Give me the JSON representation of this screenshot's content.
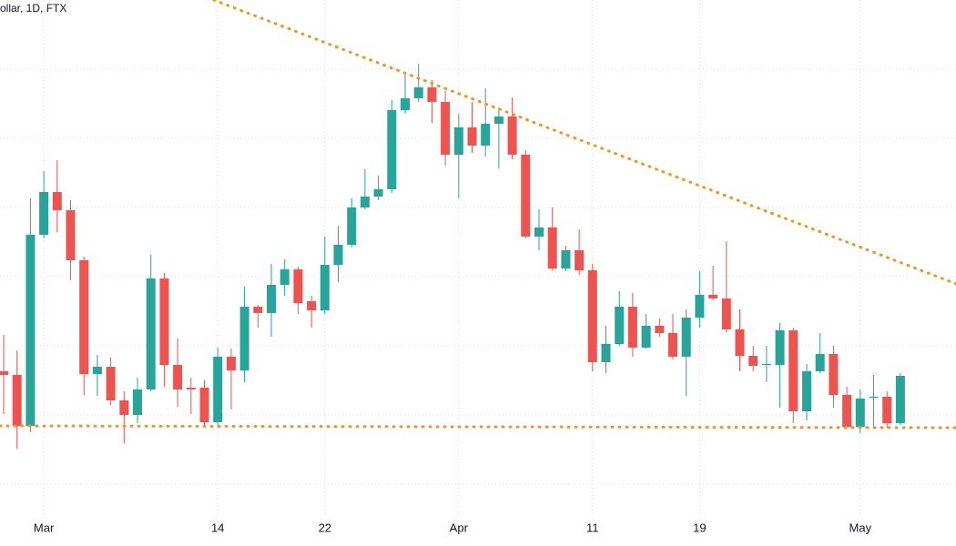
{
  "chart_data": {
    "type": "candlestick",
    "title": "ollar, 1D, FTX",
    "categories": [
      null,
      null,
      null,
      "Mar",
      null,
      null,
      null,
      null,
      null,
      null,
      null,
      null,
      null,
      null,
      null,
      null,
      "14",
      null,
      null,
      null,
      null,
      null,
      null,
      null,
      "22",
      null,
      null,
      null,
      null,
      null,
      null,
      null,
      null,
      null,
      "Apr",
      null,
      null,
      null,
      null,
      null,
      null,
      null,
      null,
      null,
      "11",
      null,
      null,
      null,
      null,
      null,
      null,
      null,
      "19",
      null,
      null,
      null,
      null,
      null,
      null,
      null,
      null,
      null,
      null,
      null,
      "May",
      null,
      null,
      null
    ],
    "open": [
      192,
      188,
      132,
      342,
      389,
      369,
      314,
      189,
      197,
      160,
      144,
      172,
      294,
      199,
      174,
      174,
      136,
      208,
      193,
      263,
      256,
      287,
      304,
      269,
      259,
      309,
      331,
      372,
      384,
      392,
      479,
      492,
      504,
      488,
      430,
      460,
      440,
      464,
      472,
      430,
      340,
      350,
      305,
      325,
      303,
      202,
      222,
      263,
      218,
      242,
      234,
      208,
      251,
      276,
      272,
      238,
      209,
      199,
      199,
      237,
      148,
      192,
      211,
      166,
      131,
      163,
      164,
      135
    ],
    "high": [
      232,
      215,
      382,
      412,
      424,
      380,
      318,
      210,
      207,
      170,
      185,
      320,
      300,
      228,
      185,
      182,
      218,
      217,
      285,
      265,
      310,
      315,
      307,
      275,
      340,
      352,
      382,
      414,
      407,
      490,
      520,
      530,
      512,
      500,
      475,
      488,
      503,
      482,
      493,
      435,
      370,
      372,
      330,
      348,
      310,
      242,
      280,
      278,
      255,
      250,
      255,
      260,
      302,
      308,
      335,
      260,
      220,
      220,
      245,
      240,
      200,
      234,
      220,
      175,
      172,
      188,
      170,
      190
    ],
    "low": [
      145,
      107,
      125,
      338,
      345,
      292,
      166,
      165,
      155,
      113,
      135,
      170,
      175,
      153,
      145,
      132,
      130,
      150,
      180,
      240,
      230,
      275,
      255,
      240,
      255,
      290,
      328,
      370,
      380,
      388,
      475,
      488,
      465,
      418,
      382,
      432,
      428,
      415,
      425,
      338,
      325,
      303,
      302,
      298,
      192,
      190,
      220,
      208,
      217,
      230,
      205,
      165,
      240,
      270,
      235,
      192,
      192,
      180,
      152,
      135,
      138,
      190,
      152,
      130,
      124,
      130,
      130,
      133
    ],
    "close": [
      188,
      132,
      342,
      389,
      369,
      314,
      189,
      197,
      160,
      144,
      172,
      294,
      199,
      172,
      172,
      136,
      208,
      193,
      263,
      256,
      287,
      304,
      267,
      259,
      309,
      331,
      372,
      384,
      392,
      479,
      492,
      504,
      488,
      430,
      460,
      440,
      464,
      472,
      430,
      340,
      350,
      305,
      325,
      303,
      202,
      222,
      263,
      218,
      242,
      234,
      208,
      251,
      276,
      272,
      238,
      209,
      198,
      200,
      237,
      148,
      192,
      211,
      166,
      131,
      162,
      164,
      135,
      187
    ],
    "up_color": "#26a69a",
    "down_color": "#ef5350",
    "ylim": [
      35,
      600
    ],
    "yticks": [
      68,
      144,
      220,
      296,
      372,
      448,
      524
    ],
    "grid": true,
    "trendlines": [
      {
        "color": "#f7931a",
        "x": [
          15.7,
          71.2
        ],
        "values": [
          600,
          288
        ]
      },
      {
        "color": "#f7931a",
        "x": [
          -0.27,
          71.2
        ],
        "values": [
          132,
          130
        ]
      }
    ]
  }
}
